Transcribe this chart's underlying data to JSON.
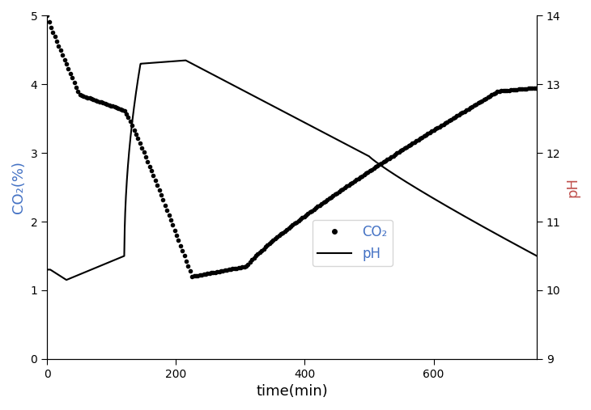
{
  "title": "",
  "xlabel": "time(min)",
  "ylabel_left": "CO₂(%)",
  "ylabel_right": "pH",
  "co2_color": "#000000",
  "ph_color": "#000000",
  "left_label_color": "#4472C4",
  "right_label_color": "#C0504D",
  "legend_co2": "CO₂",
  "legend_ph": "pH",
  "xlim": [
    0,
    760
  ],
  "ylim_co2": [
    0,
    5
  ],
  "ylim_ph": [
    9,
    14
  ],
  "yticks_co2": [
    0,
    1,
    2,
    3,
    4,
    5
  ],
  "yticks_ph": [
    9,
    10,
    11,
    12,
    13,
    14
  ],
  "xticks": [
    0,
    200,
    400,
    600
  ]
}
